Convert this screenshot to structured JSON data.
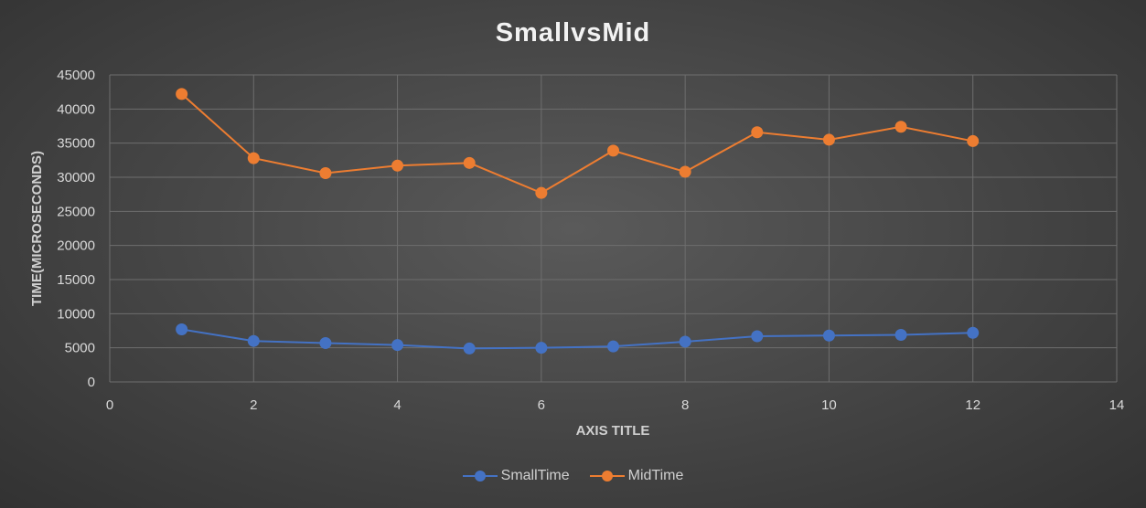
{
  "colors": {
    "grid": "#6e6e6e",
    "tick_text": "#d9d9d9",
    "axis_title": "#d0d0d0",
    "small": "#4472c4",
    "mid": "#ed7d31"
  },
  "chart_data": {
    "type": "line",
    "title": "SmallvsMid",
    "xlabel": "AXIS TITLE",
    "ylabel": "TIME(MICROSECONDS)",
    "xlim": [
      0,
      14
    ],
    "ylim": [
      0,
      45000
    ],
    "x_ticks": [
      0,
      2,
      4,
      6,
      8,
      10,
      12,
      14
    ],
    "y_ticks": [
      0,
      5000,
      10000,
      15000,
      20000,
      25000,
      30000,
      35000,
      40000,
      45000
    ],
    "grid": true,
    "legend_position": "bottom",
    "series": [
      {
        "name": "SmallTime",
        "color": "#4472c4",
        "x": [
          1,
          2,
          3,
          4,
          5,
          6,
          7,
          8,
          9,
          10,
          11,
          12
        ],
        "y": [
          7700,
          6000,
          5700,
          5400,
          4900,
          5000,
          5200,
          5900,
          6700,
          6800,
          6900,
          7200
        ]
      },
      {
        "name": "MidTime",
        "color": "#ed7d31",
        "x": [
          1,
          2,
          3,
          4,
          5,
          6,
          7,
          8,
          9,
          10,
          11,
          12
        ],
        "y": [
          42200,
          32800,
          30600,
          31700,
          32100,
          27700,
          33900,
          30800,
          36600,
          35500,
          37400,
          35300
        ]
      }
    ]
  }
}
